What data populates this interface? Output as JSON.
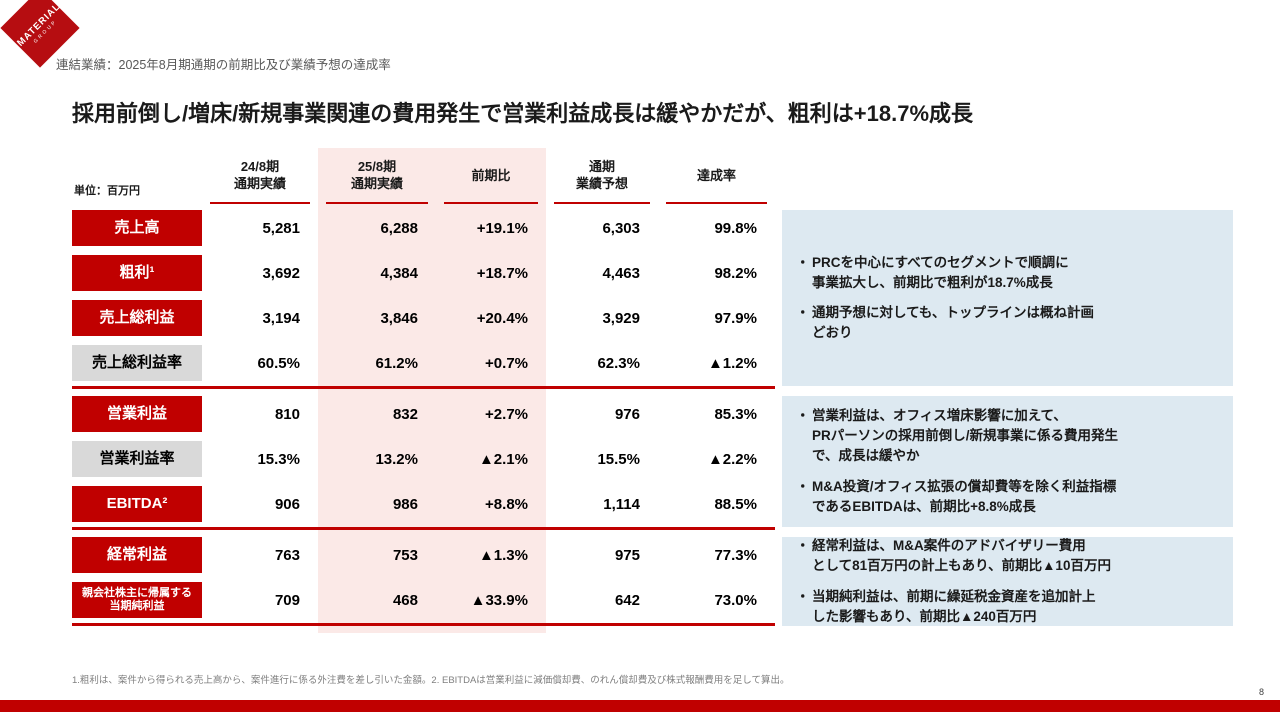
{
  "slide": {
    "header": "連結業績：2025年8月期通期の前期比及び業績予想の達成率",
    "title": "採用前倒し/増床/新規事業関連の費用発生で営業利益成長は緩やかだが、粗利は+18.7%成長",
    "footnote": "1.粗利は、案件から得られる売上高から、案件進行に係る外注費を差し引いた金額。2. EBITDAは営業利益に減価償却費、のれん償却費及び株式報酬費用を足して算出。",
    "page_number": "8"
  },
  "logo": {
    "line1": "MATERIAL",
    "line2": "GROUP"
  },
  "ui": {
    "bullet_char": "・"
  },
  "table": {
    "unit_label": "単位：百万円",
    "columns": [
      "24/8期\n通期実績",
      "25/8期\n通期実績",
      "前期比",
      "通期\n業績予想",
      "達成率"
    ],
    "rows": [
      {
        "label": "売上高",
        "values": [
          "5,281",
          "6,288",
          "+19.1%",
          "6,303",
          "99.8%"
        ]
      },
      {
        "label": "粗利¹",
        "values": [
          "3,692",
          "4,384",
          "+18.7%",
          "4,463",
          "98.2%"
        ]
      },
      {
        "label": "売上総利益",
        "values": [
          "3,194",
          "3,846",
          "+20.4%",
          "3,929",
          "97.9%"
        ]
      },
      {
        "label": "売上総利益率",
        "values": [
          "60.5%",
          "61.2%",
          "+0.7%",
          "62.3%",
          "▲1.2%"
        ]
      },
      {
        "label": "営業利益",
        "values": [
          "810",
          "832",
          "+2.7%",
          "976",
          "85.3%"
        ]
      },
      {
        "label": "営業利益率",
        "values": [
          "15.3%",
          "13.2%",
          "▲2.1%",
          "15.5%",
          "▲2.2%"
        ]
      },
      {
        "label": "EBITDA²",
        "values": [
          "906",
          "986",
          "+8.8%",
          "1,114",
          "88.5%"
        ]
      },
      {
        "label": "経常利益",
        "values": [
          "763",
          "753",
          "▲1.3%",
          "975",
          "77.3%"
        ]
      },
      {
        "label": "親会社株主に帰属する\n当期純利益",
        "values": [
          "709",
          "468",
          "▲33.9%",
          "642",
          "73.0%"
        ]
      }
    ]
  },
  "notes": [
    {
      "bullets": [
        "PRCを中心にすべてのセグメントで順調に\n事業拡大し、前期比で粗利が18.7%成長",
        "通期予想に対しても、トップラインは概ね計画\nどおり"
      ]
    },
    {
      "bullets": [
        "営業利益は、オフィス増床影響に加えて、\nPRパーソンの採用前倒し/新規事業に係る費用発生\nで、成長は緩やか",
        "M&A投資/オフィス拡張の償却費等を除く利益指標\nであるEBITDAは、前期比+8.8%成長"
      ]
    },
    {
      "bullets": [
        "経常利益は、M&A案件のアドバイザリー費用\nとして81百万円の計上もあり、前期比▲10百万円",
        "当期純利益は、前期に繰延税金資産を追加計上\nした影響もあり、前期比▲240百万円"
      ]
    }
  ],
  "colors": {
    "accent-red": "#c00000",
    "logo-red": "#b60d11",
    "pink-band": "#fbe9e7",
    "note-blue": "#dde9f1",
    "gray-label": "#d9d9d9"
  }
}
